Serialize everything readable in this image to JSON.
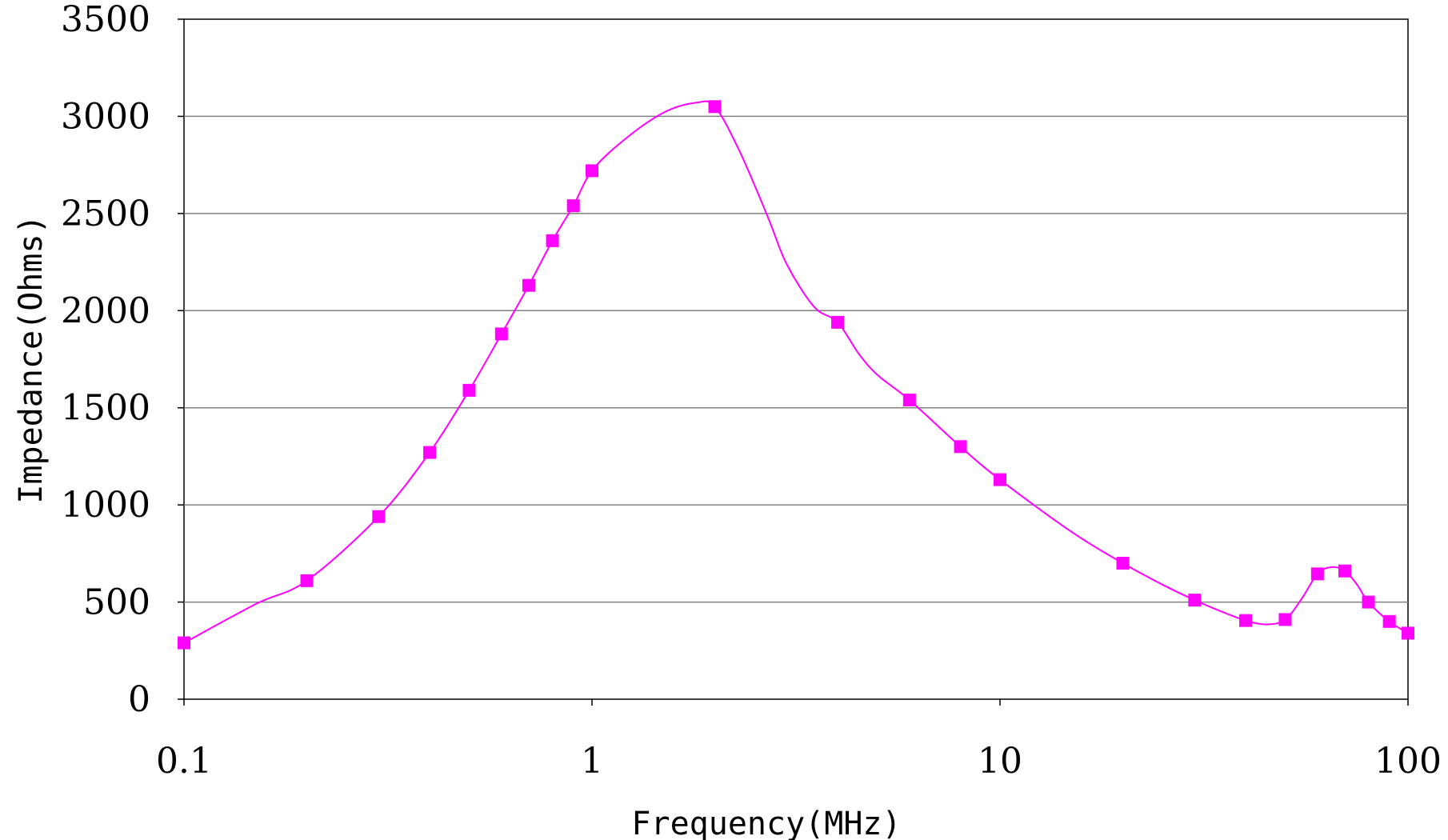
{
  "chart_data": {
    "type": "line",
    "title": "",
    "xlabel": "Frequency(MHz)",
    "ylabel": "Impedance(Ohms)",
    "xscale": "log",
    "xlim": [
      0.1,
      100
    ],
    "ylim": [
      0,
      3500
    ],
    "grid": "horizontal",
    "legend": "none",
    "x_ticks": [
      {
        "value": 0.1,
        "label": "0.1"
      },
      {
        "value": 1,
        "label": "1"
      },
      {
        "value": 10,
        "label": "10"
      },
      {
        "value": 100,
        "label": "100"
      }
    ],
    "y_ticks": [
      {
        "value": 0,
        "label": "0"
      },
      {
        "value": 500,
        "label": "500"
      },
      {
        "value": 1000,
        "label": "1000"
      },
      {
        "value": 1500,
        "label": "1500"
      },
      {
        "value": 2000,
        "label": "2000"
      },
      {
        "value": 2500,
        "label": "2500"
      },
      {
        "value": 3000,
        "label": "3000"
      },
      {
        "value": 3500,
        "label": "3500"
      }
    ],
    "series": [
      {
        "color": "#ff00ff",
        "marker": "square",
        "x": [
          0.1,
          0.2,
          0.3,
          0.4,
          0.5,
          0.6,
          0.7,
          0.8,
          0.9,
          1,
          2,
          4,
          6,
          8,
          10,
          20,
          30,
          40,
          50,
          60,
          70,
          80,
          90,
          100
        ],
        "y": [
          290,
          610,
          940,
          1270,
          1590,
          1880,
          2130,
          2360,
          2540,
          2720,
          3050,
          1940,
          1540,
          1300,
          1130,
          700,
          510,
          405,
          410,
          645,
          660,
          500,
          400,
          340
        ]
      }
    ],
    "curve": {
      "x": [
        0.1,
        0.15,
        0.2,
        0.3,
        0.4,
        0.5,
        0.6,
        0.7,
        0.8,
        0.9,
        1,
        1.2,
        1.5,
        1.8,
        2,
        2.3,
        2.7,
        3,
        3.5,
        4,
        4.5,
        5,
        6,
        8,
        10,
        15,
        20,
        25,
        30,
        35,
        40,
        45,
        50,
        55,
        60,
        65,
        70,
        75,
        80,
        90,
        100
      ],
      "y": [
        290,
        490,
        610,
        940,
        1270,
        1590,
        1880,
        2130,
        2360,
        2540,
        2720,
        2880,
        3020,
        3070,
        3050,
        2820,
        2480,
        2240,
        2020,
        1940,
        1780,
        1670,
        1540,
        1300,
        1130,
        860,
        700,
        590,
        510,
        450,
        405,
        385,
        410,
        520,
        645,
        680,
        660,
        590,
        500,
        400,
        340
      ]
    }
  }
}
